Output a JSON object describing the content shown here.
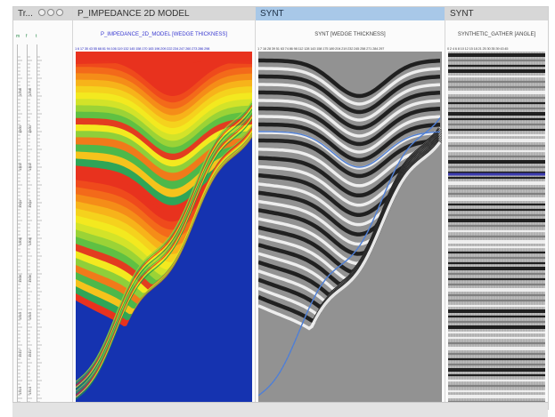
{
  "track_panel": {
    "title": "Tr...",
    "header_marks": [
      "m",
      "f",
      "t"
    ],
    "depth_labels": [
      "1298",
      "1300",
      "1302",
      "1304",
      "1306",
      "1308",
      "1310",
      "1312",
      "1314"
    ]
  },
  "panels": [
    {
      "title": "P_IMPEDANCE 2D MODEL",
      "subtitle": "P_IMPEDANCE_2D_MODEL [WEDGE THICKNESS]",
      "ticks": "1 6 17 30 43 55 68 81 94 106 119 132 145 158 170 183 196 209 222 234 247 260 273 286 298"
    },
    {
      "title": "SYNT",
      "subtitle": "SYNT [WEDGE THICKNESS]",
      "ticks": "1 7 16 28 39 51 63 74 86 98 112 128 143 158 175 189 204 219 232 245 258 271 284 297"
    },
    {
      "title": "SYNT",
      "subtitle": "SYNTHETIC_GATHER [ANGLE]",
      "ticks": "0 2 4 6 8 10 12 15 18 21 25 30 35 39 43 45"
    }
  ],
  "colors": {
    "title_bar": "#d7d7d7",
    "active_title_bar": "#a8c8e8",
    "impedance_low": "#1533b0",
    "impedance_mid": "#f3e91f",
    "impedance_high": "#e8321e"
  },
  "icons": [
    "track-close-icon",
    "track-minimize-icon",
    "track-menu-icon"
  ]
}
